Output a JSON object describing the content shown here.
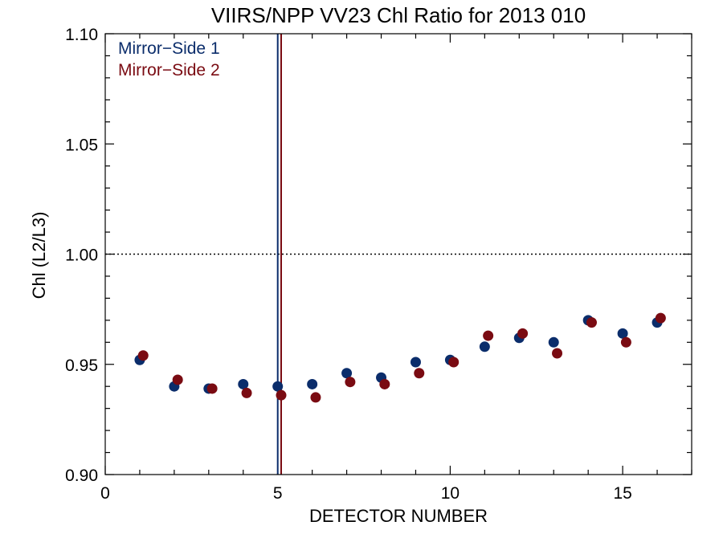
{
  "chart_data": {
    "type": "scatter",
    "title": "VIIRS/NPP VV23 Chl Ratio for 2013 010",
    "xlabel": "DETECTOR NUMBER",
    "ylabel": "Chl (L2/L3)",
    "xlim": [
      0,
      17
    ],
    "ylim": [
      0.9,
      1.1
    ],
    "xticks": [
      0,
      5,
      10,
      15
    ],
    "xtick_labels": [
      "0",
      "5",
      "10",
      "15"
    ],
    "yticks": [
      0.9,
      0.95,
      1.0,
      1.05,
      1.1
    ],
    "ytick_labels": [
      "0.90",
      "0.95",
      "1.00",
      "1.05",
      "1.10"
    ],
    "reference_line": {
      "y": 1.0,
      "style": "dotted"
    },
    "grid": false,
    "legend_position": "top-left",
    "series": [
      {
        "name": "Mirror−Side 1",
        "color": "#0b2d6b",
        "x": [
          1,
          2,
          3,
          4,
          5,
          6,
          7,
          8,
          9,
          10,
          11,
          12,
          13,
          14,
          15,
          16
        ],
        "y": [
          0.952,
          0.94,
          0.939,
          0.941,
          0.94,
          0.941,
          0.946,
          0.944,
          0.951,
          0.952,
          0.958,
          0.962,
          0.96,
          0.97,
          0.964,
          0.969
        ],
        "vline_x": 5.0
      },
      {
        "name": "Mirror−Side 2",
        "color": "#7a0b12",
        "x": [
          1.1,
          2.1,
          3.1,
          4.1,
          5.1,
          6.1,
          7.1,
          8.1,
          9.1,
          10.1,
          11.1,
          12.1,
          13.1,
          14.1,
          15.1,
          16.1
        ],
        "y": [
          0.954,
          0.943,
          0.939,
          0.937,
          0.936,
          0.935,
          0.942,
          0.941,
          0.946,
          0.951,
          0.963,
          0.964,
          0.955,
          0.969,
          0.96,
          0.971
        ],
        "vline_x": 5.1
      }
    ]
  }
}
